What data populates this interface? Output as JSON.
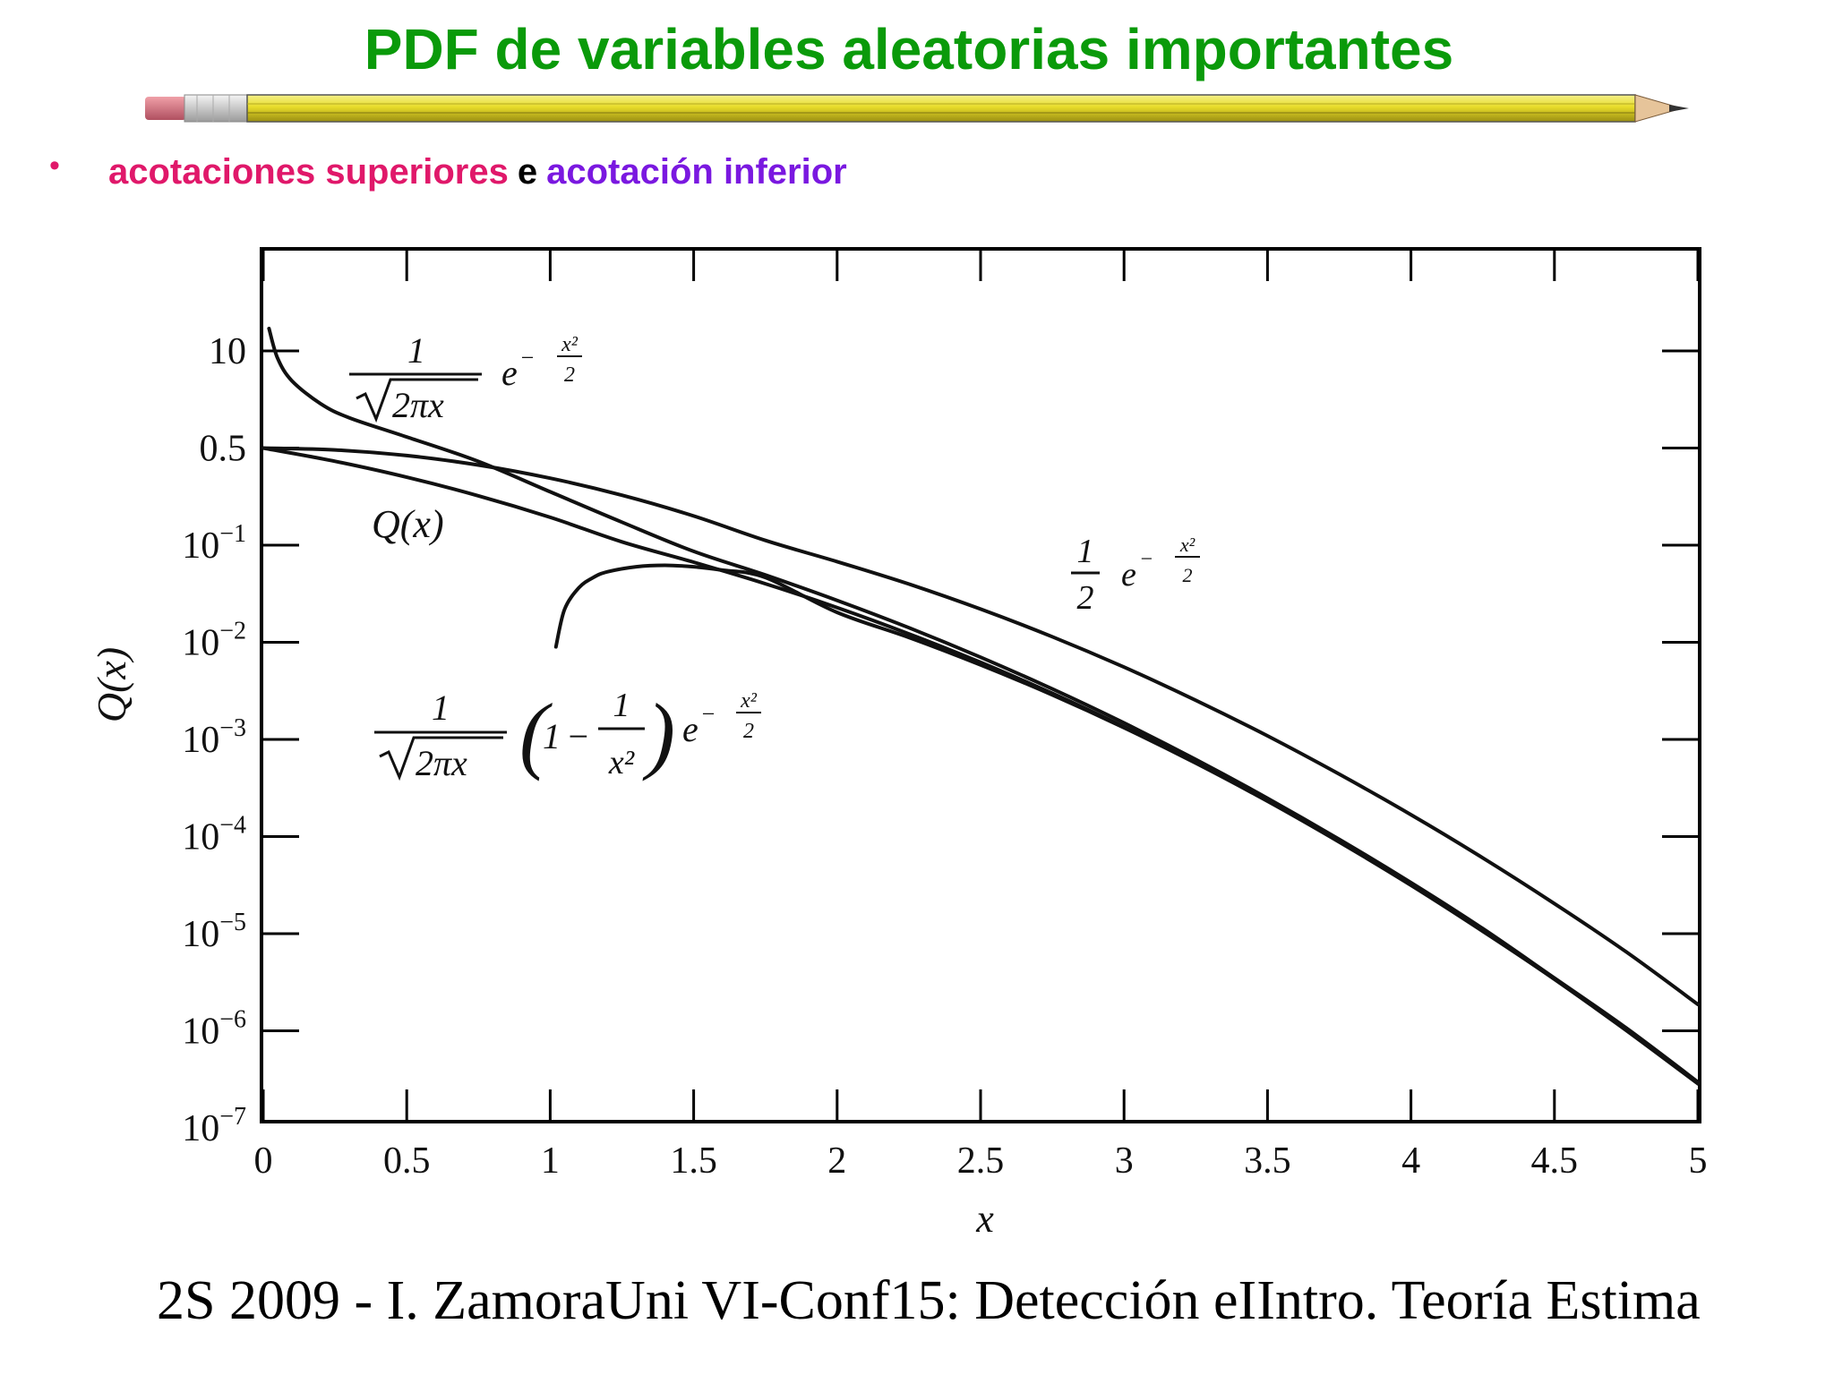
{
  "slide": {
    "title": "PDF de variables aleatorias importantes",
    "bullet": {
      "upper_text": "acotaciones superiores",
      "join_text": "e",
      "lower_text": "acotación inferior",
      "upper_color": "#e0186a",
      "lower_color": "#7a18e0"
    },
    "footer": "2S 2009 - I. ZamoraUni VI-Conf15: Detección eIIntro. Teoría Estima"
  },
  "chart_data": {
    "type": "line",
    "xlabel": "x",
    "ylabel": "Q(x)",
    "xlim": [
      0,
      5
    ],
    "ylim": [
      1e-07,
      100
    ],
    "yscale": "log",
    "x_ticks": [
      0,
      0.5,
      1,
      1.5,
      2,
      2.5,
      3,
      3.5,
      4,
      4.5,
      5
    ],
    "x_tick_labels": [
      "0",
      "0.5",
      "1",
      "1.5",
      "2",
      "2.5",
      "3",
      "3.5",
      "4",
      "4.5",
      "5"
    ],
    "y_ticks": [
      10,
      0.5,
      0.1,
      0.01,
      0.001,
      0.0001,
      1e-05,
      1e-06,
      1e-07
    ],
    "y_tick_labels": [
      {
        "base": "10",
        "exp": ""
      },
      {
        "base": "0.5",
        "exp": ""
      },
      {
        "base": "10",
        "exp": "−1"
      },
      {
        "base": "10",
        "exp": "−2"
      },
      {
        "base": "10",
        "exp": "−3"
      },
      {
        "base": "10",
        "exp": "−4"
      },
      {
        "base": "10",
        "exp": "−5"
      },
      {
        "base": "10",
        "exp": "−6"
      },
      {
        "base": "10",
        "exp": "−7"
      }
    ],
    "series": [
      {
        "name": "Q(x)",
        "x": [
          0,
          0.25,
          0.5,
          0.75,
          1,
          1.25,
          1.5,
          1.75,
          2,
          2.25,
          2.5,
          2.75,
          3,
          3.25,
          3.5,
          3.75,
          4,
          4.25,
          4.5,
          4.75,
          5
        ],
        "y": [
          0.5,
          0.4013,
          0.3085,
          0.2266,
          0.1587,
          0.1056,
          0.0668,
          0.0401,
          0.02275,
          0.01222,
          0.00621,
          0.00298,
          0.00135,
          0.000577,
          0.000233,
          8.84e-05,
          3.17e-05,
          1.07e-05,
          3.4e-06,
          1.02e-06,
          2.87e-07
        ]
      },
      {
        "name": "upper_bound_1",
        "x": [
          0.02,
          0.05,
          0.1,
          0.2,
          0.3,
          0.5,
          0.75,
          1,
          1.25,
          1.5,
          1.75,
          2,
          2.25,
          2.5,
          2.75,
          3,
          3.25,
          3.5,
          3.75,
          4,
          4.25,
          4.5,
          4.75,
          5
        ],
        "y": [
          19.94,
          7.97,
          3.97,
          1.955,
          1.27,
          0.704,
          0.4005,
          0.242,
          0.1463,
          0.0863,
          0.0493,
          0.027,
          0.01413,
          0.00701,
          0.00331,
          0.001477,
          0.000622,
          0.000248,
          9.36e-05,
          3.35e-05,
          1.13e-05,
          3.5e-06,
          1.07e-06,
          2.97e-07
        ]
      },
      {
        "name": "upper_bound_2",
        "x": [
          0,
          0.25,
          0.5,
          0.75,
          1,
          1.25,
          1.5,
          1.75,
          2,
          2.25,
          2.5,
          2.75,
          3,
          3.25,
          3.5,
          3.75,
          4,
          4.25,
          4.5,
          4.75,
          5
        ],
        "y": [
          0.5,
          0.4845,
          0.4412,
          0.3773,
          0.3033,
          0.2289,
          0.1623,
          0.1081,
          0.0677,
          0.0398,
          0.02197,
          0.01141,
          0.00555,
          0.00253,
          0.001088,
          0.000439,
          0.000168,
          6.04e-05,
          2.04e-05,
          6.5e-06,
          1.87e-06
        ]
      },
      {
        "name": "lower_bound",
        "x": [
          1.02,
          1.05,
          1.1,
          1.15,
          1.2,
          1.3,
          1.4,
          1.5,
          1.6,
          1.75,
          2,
          2.25,
          2.5,
          2.75,
          3,
          3.25,
          3.5,
          3.75,
          4,
          4.25,
          4.5,
          4.75,
          5
        ],
        "y": [
          0.00898,
          0.0218,
          0.0364,
          0.0465,
          0.0532,
          0.06,
          0.062,
          0.0599,
          0.0553,
          0.0465,
          0.0203,
          0.01122,
          0.00585,
          0.00287,
          0.00132,
          0.00057,
          0.000231,
          8.78e-05,
          3.15e-05,
          1.06e-05,
          3.4e-06,
          1.01e-06,
          2.85e-07
        ]
      }
    ],
    "annotations": {
      "q_label": "Q(x)",
      "ub1": {
        "num": "1",
        "den_text": "2πx",
        "exp_num": "x²",
        "exp_den": "2",
        "e": "e"
      },
      "ub2": {
        "num": "1",
        "den": "2",
        "exp_num": "x²",
        "exp_den": "2",
        "e": "e"
      },
      "lb": {
        "num": "1",
        "den_text": "2πx",
        "paren_one": "1",
        "inner_num": "1",
        "inner_den": "x²",
        "exp_num": "x²",
        "exp_den": "2",
        "e": "e"
      }
    }
  }
}
